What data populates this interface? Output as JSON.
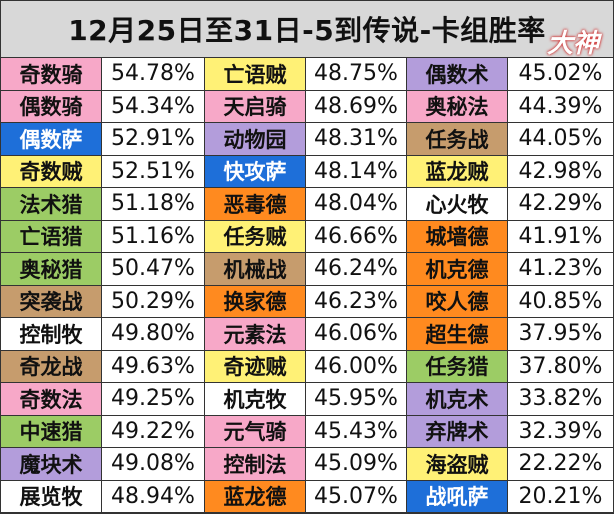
{
  "title": "12月25日至31日-5到传说-卡组胜率",
  "watermark": "大神",
  "rows": [
    [
      {
        "name": "奇数骑",
        "rate": "54.78%",
        "color": "#f7a8c8"
      },
      {
        "name": "亡语贼",
        "rate": "48.75%",
        "color": "#fff176"
      },
      {
        "name": "偶数术",
        "rate": "45.02%",
        "color": "#b39ddb"
      }
    ],
    [
      {
        "name": "偶数骑",
        "rate": "54.34%",
        "color": "#f7a8c8"
      },
      {
        "name": "天启骑",
        "rate": "48.69%",
        "color": "#f7a8c8"
      },
      {
        "name": "奥秘法",
        "rate": "44.39%",
        "color": "#f7a8c8"
      }
    ],
    [
      {
        "name": "偶数萨",
        "rate": "52.91%",
        "color": "#1e6fd9"
      },
      {
        "name": "动物园",
        "rate": "48.31%",
        "color": "#b39ddb"
      },
      {
        "name": "任务战",
        "rate": "44.05%",
        "color": "#c69c6d"
      }
    ],
    [
      {
        "name": "奇数贼",
        "rate": "52.51%",
        "color": "#fff176"
      },
      {
        "name": "快攻萨",
        "rate": "48.14%",
        "color": "#1e6fd9"
      },
      {
        "name": "蓝龙贼",
        "rate": "42.98%",
        "color": "#fff176"
      }
    ],
    [
      {
        "name": "法术猎",
        "rate": "51.18%",
        "color": "#9ccc65"
      },
      {
        "name": "恶毒德",
        "rate": "48.04%",
        "color": "#ff8a1f"
      },
      {
        "name": "心火牧",
        "rate": "42.29%",
        "color": "#ffffff"
      }
    ],
    [
      {
        "name": "亡语猎",
        "rate": "51.16%",
        "color": "#9ccc65"
      },
      {
        "name": "任务贼",
        "rate": "46.66%",
        "color": "#fff176"
      },
      {
        "name": "城墙德",
        "rate": "41.91%",
        "color": "#ff8a1f"
      }
    ],
    [
      {
        "name": "奥秘猎",
        "rate": "50.47%",
        "color": "#9ccc65"
      },
      {
        "name": "机械战",
        "rate": "46.24%",
        "color": "#c69c6d"
      },
      {
        "name": "机克德",
        "rate": "41.23%",
        "color": "#ff8a1f"
      }
    ],
    [
      {
        "name": "突袭战",
        "rate": "50.29%",
        "color": "#c69c6d"
      },
      {
        "name": "换家德",
        "rate": "46.23%",
        "color": "#ff8a1f"
      },
      {
        "name": "咬人德",
        "rate": "40.85%",
        "color": "#ff8a1f"
      }
    ],
    [
      {
        "name": "控制牧",
        "rate": "49.80%",
        "color": "#ffffff"
      },
      {
        "name": "元素法",
        "rate": "46.06%",
        "color": "#f7a8c8"
      },
      {
        "name": "超生德",
        "rate": "37.95%",
        "color": "#ff8a1f"
      }
    ],
    [
      {
        "name": "奇龙战",
        "rate": "49.63%",
        "color": "#c69c6d"
      },
      {
        "name": "奇迹贼",
        "rate": "46.00%",
        "color": "#fff176"
      },
      {
        "name": "任务猎",
        "rate": "37.80%",
        "color": "#9ccc65"
      }
    ],
    [
      {
        "name": "奇数法",
        "rate": "49.25%",
        "color": "#f7a8c8"
      },
      {
        "name": "机克牧",
        "rate": "45.95%",
        "color": "#ffffff"
      },
      {
        "name": "机克术",
        "rate": "33.82%",
        "color": "#b39ddb"
      }
    ],
    [
      {
        "name": "中速猎",
        "rate": "49.22%",
        "color": "#9ccc65"
      },
      {
        "name": "元气骑",
        "rate": "45.43%",
        "color": "#f7a8c8"
      },
      {
        "name": "弃牌术",
        "rate": "32.39%",
        "color": "#b39ddb"
      }
    ],
    [
      {
        "name": "魔块术",
        "rate": "49.08%",
        "color": "#b39ddb"
      },
      {
        "name": "控制法",
        "rate": "45.09%",
        "color": "#f7a8c8"
      },
      {
        "name": "海盗贼",
        "rate": "22.22%",
        "color": "#fff176"
      }
    ],
    [
      {
        "name": "展览牧",
        "rate": "48.94%",
        "color": "#ffffff"
      },
      {
        "name": "蓝龙德",
        "rate": "45.07%",
        "color": "#ff8a1f"
      },
      {
        "name": "战吼萨",
        "rate": "20.21%",
        "color": "#1e6fd9"
      }
    ]
  ]
}
